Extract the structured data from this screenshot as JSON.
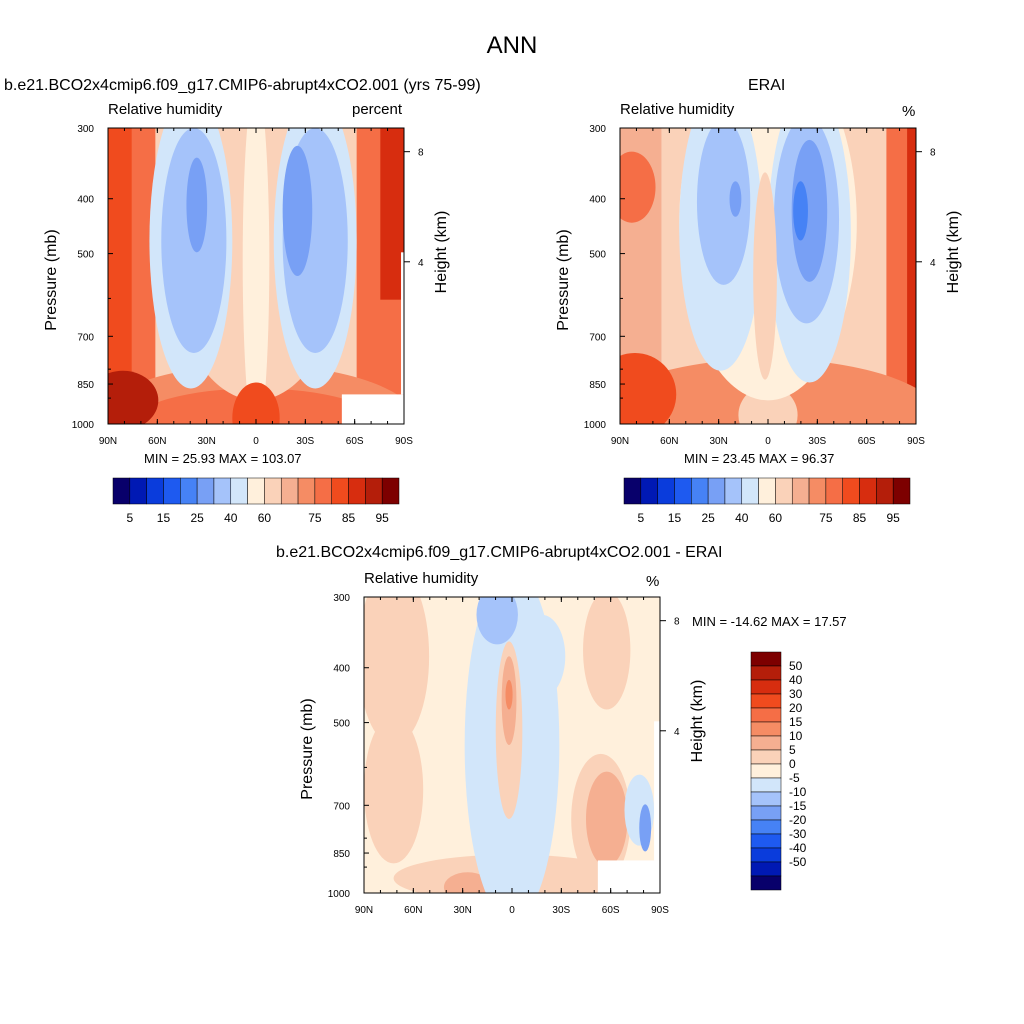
{
  "page": {
    "title": "ANN"
  },
  "colors": {
    "rh_levels": [
      "#08006b",
      "#0019b4",
      "#0a3cdc",
      "#1e5af0",
      "#4682f5",
      "#78a0f5",
      "#a5c3fa",
      "#d2e6fa",
      "#fff0dc",
      "#fad2b9",
      "#f5af91",
      "#f58c64",
      "#f56e46",
      "#f04b1e",
      "#d72d0f",
      "#b41e0a",
      "#7d0000"
    ],
    "diff_levels": [
      "#08006b",
      "#0019b4",
      "#0a3cdc",
      "#1e5af0",
      "#4682f5",
      "#78a0f5",
      "#a5c3fa",
      "#d2e6fa",
      "#fff0dc",
      "#fad2b9",
      "#f5af91",
      "#f58c64",
      "#f56e46",
      "#f04b1e",
      "#d72d0f",
      "#b41e0a",
      "#7d0000"
    ]
  },
  "plots": {
    "model": {
      "title": "b.e21.BCO2x4cmip6.f09_g17.CMIP6-abrupt4xCO2.001 (yrs 75-99)",
      "left_string": "Relative humidity",
      "right_string": "percent",
      "stats": "MIN =  25.93  MAX = 103.07"
    },
    "obs": {
      "title": "ERAI",
      "left_string": "Relative humidity",
      "right_string": "%",
      "stats": "MIN =  23.45  MAX =  96.37"
    },
    "diff": {
      "title": "b.e21.BCO2x4cmip6.f09_g17.CMIP6-abrupt4xCO2.001 - ERAI",
      "left_string": "Relative humidity",
      "right_string": "%",
      "stats": "MIN = -14.62  MAX =  17.57"
    }
  },
  "chart_data": [
    {
      "type": "heatmap",
      "name": "model",
      "title": "b.e21.BCO2x4cmip6.f09_g17.CMIP6-abrupt4xCO2.001 (yrs 75-99)",
      "xlabel": "",
      "ylabel": "Pressure (mb)",
      "y2label": "Height (km)",
      "x_ticks": [
        "90N",
        "60N",
        "30N",
        "0",
        "30S",
        "60S",
        "90S"
      ],
      "y_ticks": [
        300,
        400,
        500,
        700,
        850,
        1000
      ],
      "y2_ticks": [
        8,
        4
      ],
      "ylim": [
        1000,
        300
      ],
      "ylog": true,
      "levels": [
        5,
        10,
        15,
        20,
        25,
        30,
        40,
        50,
        60,
        65,
        70,
        75,
        80,
        85,
        90,
        95
      ],
      "label_levels": [
        5,
        15,
        25,
        40,
        60,
        75,
        85,
        95
      ],
      "min": 25.93,
      "max": 103.07
    },
    {
      "type": "heatmap",
      "name": "obs",
      "title": "ERAI",
      "xlabel": "",
      "ylabel": "Pressure (mb)",
      "y2label": "Height (km)",
      "x_ticks": [
        "90N",
        "60N",
        "30N",
        "0",
        "30S",
        "60S",
        "90S"
      ],
      "y_ticks": [
        300,
        400,
        500,
        700,
        850,
        1000
      ],
      "y2_ticks": [
        8,
        4
      ],
      "ylim": [
        1000,
        300
      ],
      "ylog": true,
      "levels": [
        5,
        10,
        15,
        20,
        25,
        30,
        40,
        50,
        60,
        65,
        70,
        75,
        80,
        85,
        90,
        95
      ],
      "label_levels": [
        5,
        15,
        25,
        40,
        60,
        75,
        85,
        95
      ],
      "min": 23.45,
      "max": 96.37
    },
    {
      "type": "heatmap",
      "name": "diff",
      "title": "b.e21.BCO2x4cmip6.f09_g17.CMIP6-abrupt4xCO2.001 - ERAI",
      "xlabel": "",
      "ylabel": "Pressure (mb)",
      "y2label": "Height (km)",
      "x_ticks": [
        "90N",
        "60N",
        "30N",
        "0",
        "30S",
        "60S",
        "90S"
      ],
      "y_ticks": [
        300,
        400,
        500,
        700,
        850,
        1000
      ],
      "y2_ticks": [
        8,
        4
      ],
      "ylim": [
        1000,
        300
      ],
      "ylog": true,
      "levels": [
        -50,
        -40,
        -30,
        -20,
        -15,
        -10,
        -5,
        0,
        5,
        10,
        15,
        20,
        30,
        40,
        50
      ],
      "label_levels": [
        50,
        40,
        30,
        20,
        15,
        10,
        5,
        0,
        -5,
        -10,
        -15,
        -20,
        -30,
        -40,
        -50
      ],
      "min": -14.62,
      "max": 17.57
    }
  ]
}
